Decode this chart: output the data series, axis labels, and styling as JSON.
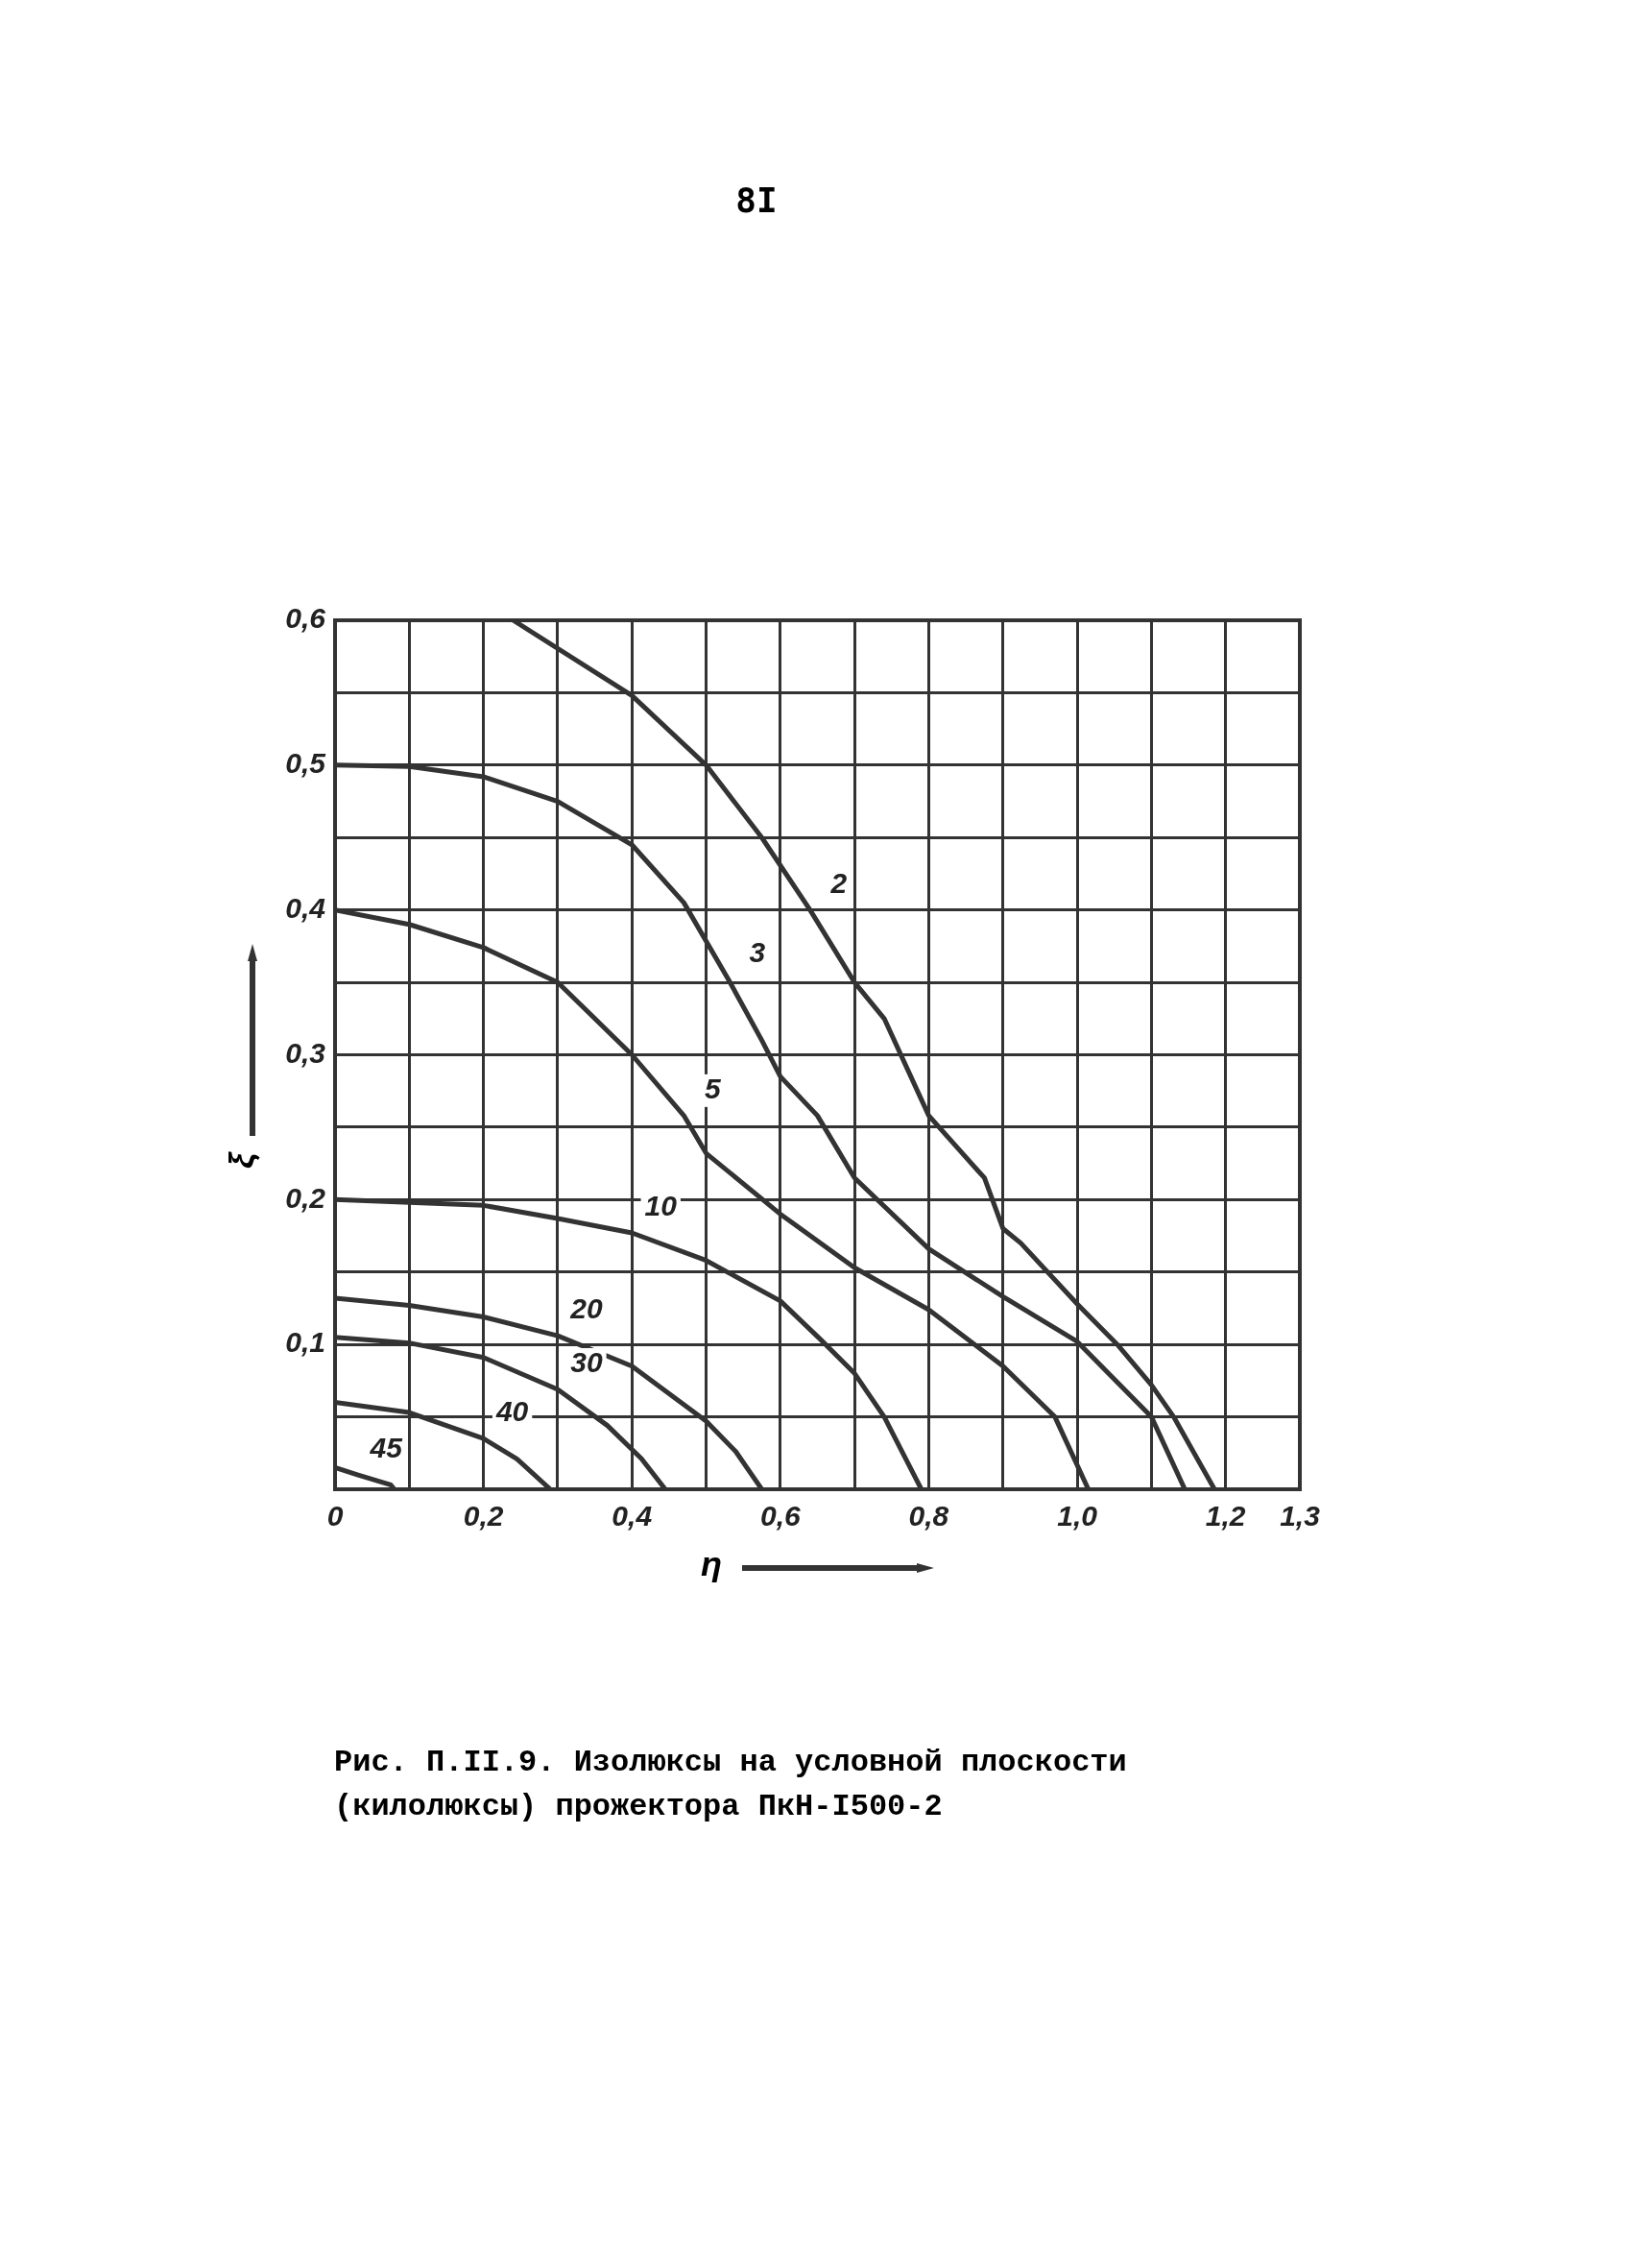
{
  "chart_data": {
    "type": "line",
    "title": "Рис. П.II.9. Изолюксы на условной плоскости (килолюксы) прожектора ПкН-I500-2",
    "xlabel": "η",
    "ylabel": "ξ",
    "xlim": [
      0,
      1.3
    ],
    "ylim": [
      0,
      0.6
    ],
    "xticks": [
      {
        "value": 0,
        "label": "0"
      },
      {
        "value": 0.1,
        "label": null
      },
      {
        "value": 0.2,
        "label": "0,2"
      },
      {
        "value": 0.3,
        "label": null
      },
      {
        "value": 0.4,
        "label": "0,4"
      },
      {
        "value": 0.5,
        "label": null
      },
      {
        "value": 0.6,
        "label": "0,6"
      },
      {
        "value": 0.7,
        "label": null
      },
      {
        "value": 0.8,
        "label": "0,8"
      },
      {
        "value": 0.9,
        "label": null
      },
      {
        "value": 1.0,
        "label": "1,0"
      },
      {
        "value": 1.1,
        "label": null
      },
      {
        "value": 1.2,
        "label": "1,2"
      },
      {
        "value": 1.3,
        "label": "1,3"
      }
    ],
    "yticks": [
      {
        "value": 0.05,
        "label": null
      },
      {
        "value": 0.1,
        "label": "0,1"
      },
      {
        "value": 0.15,
        "label": null
      },
      {
        "value": 0.2,
        "label": "0,2"
      },
      {
        "value": 0.25,
        "label": null
      },
      {
        "value": 0.3,
        "label": "0,3"
      },
      {
        "value": 0.35,
        "label": null
      },
      {
        "value": 0.4,
        "label": "0,4"
      },
      {
        "value": 0.45,
        "label": null
      },
      {
        "value": 0.5,
        "label": "0,5"
      },
      {
        "value": 0.55,
        "label": null
      },
      {
        "value": 0.6,
        "label": "0,6"
      }
    ],
    "grid": true,
    "marker": "none",
    "line_style": "solid",
    "series": [
      {
        "color": "#333333",
        "x": [
          0.24,
          0.4,
          0.5,
          0.575,
          0.64,
          0.7,
          0.74,
          0.8,
          0.875,
          0.9,
          0.924,
          1.0,
          1.054,
          1.1,
          1.13,
          1.185
        ],
        "values": [
          0.6,
          0.548,
          0.5,
          0.45,
          0.4,
          0.35,
          0.325,
          0.258,
          0.215,
          0.18,
          0.17,
          0.128,
          0.1,
          0.072,
          0.05,
          0
        ]
      },
      {
        "color": "#333333",
        "x": [
          0,
          0.1,
          0.2,
          0.3,
          0.4,
          0.47,
          0.53,
          0.575,
          0.6,
          0.65,
          0.7,
          0.8,
          0.9,
          1.0,
          1.1,
          1.145
        ],
        "values": [
          0.5,
          0.499,
          0.492,
          0.475,
          0.445,
          0.405,
          0.352,
          0.31,
          0.285,
          0.258,
          0.215,
          0.166,
          0.133,
          0.102,
          0.05,
          0
        ]
      },
      {
        "color": "#333333",
        "x": [
          0,
          0.1,
          0.2,
          0.3,
          0.4,
          0.47,
          0.5,
          0.6,
          0.7,
          0.8,
          0.9,
          0.97,
          1.015
        ],
        "values": [
          0.4,
          0.39,
          0.374,
          0.35,
          0.3,
          0.258,
          0.232,
          0.19,
          0.153,
          0.124,
          0.085,
          0.05,
          0
        ]
      },
      {
        "color": "#333333",
        "x": [
          0,
          0.2,
          0.3,
          0.4,
          0.5,
          0.6,
          0.655,
          0.7,
          0.74,
          0.79
        ],
        "values": [
          0.2,
          0.196,
          0.187,
          0.177,
          0.158,
          0.13,
          0.103,
          0.08,
          0.05,
          0
        ]
      },
      {
        "color": "#333333",
        "x": [
          0,
          0.1,
          0.2,
          0.3,
          0.4,
          0.5,
          0.54,
          0.575
        ],
        "values": [
          0.132,
          0.127,
          0.119,
          0.106,
          0.085,
          0.047,
          0.026,
          0
        ]
      },
      {
        "color": "#333333",
        "x": [
          0,
          0.1,
          0.2,
          0.3,
          0.367,
          0.413,
          0.445
        ],
        "values": [
          0.105,
          0.101,
          0.091,
          0.069,
          0.044,
          0.021,
          0
        ]
      },
      {
        "color": "#333333",
        "x": [
          0,
          0.1,
          0.2,
          0.245,
          0.29
        ],
        "values": [
          0.06,
          0.053,
          0.035,
          0.021,
          0
        ]
      },
      {
        "color": "#333333",
        "x": [
          0,
          0.03,
          0.075,
          0.08
        ],
        "values": [
          0.015,
          0.01,
          0.003,
          0
        ]
      }
    ],
    "annotations": [
      "8I",
      {
        "text": "2",
        "x": 0.64,
        "y": 0.4
      },
      {
        "text": "3",
        "x": 0.53,
        "y": 0.352
      },
      {
        "text": "5",
        "x": 0.47,
        "y": 0.258
      },
      {
        "text": "10",
        "x": 0.4,
        "y": 0.177
      },
      {
        "text": "20",
        "x": 0.3,
        "y": 0.106
      },
      {
        "text": "30",
        "x": 0.3,
        "y": 0.069
      },
      {
        "text": "40",
        "x": 0.2,
        "y": 0.035
      },
      {
        "text": "45",
        "x": 0.03,
        "y": 0.01
      }
    ]
  }
}
